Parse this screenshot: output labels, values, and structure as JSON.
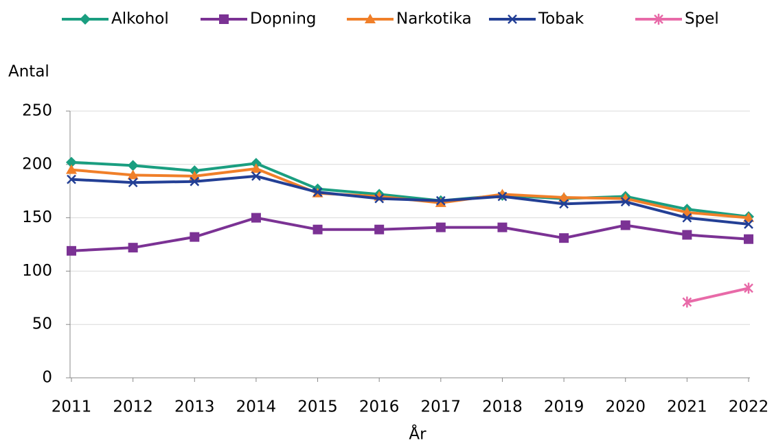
{
  "chart_data": {
    "type": "line",
    "y_label": "Antal",
    "x_label": "År",
    "categories": [
      "2011",
      "2012",
      "2013",
      "2014",
      "2015",
      "2016",
      "2017",
      "2018",
      "2019",
      "2020",
      "2021",
      "2022"
    ],
    "series": [
      {
        "name": "Alkohol",
        "color": "#1a9e80",
        "marker": "diamond",
        "values": [
          202,
          199,
          194,
          201,
          177,
          172,
          166,
          171,
          168,
          170,
          158,
          151
        ]
      },
      {
        "name": "Dopning",
        "color": "#7b3294",
        "marker": "square",
        "values": [
          119,
          122,
          132,
          150,
          139,
          139,
          141,
          141,
          131,
          143,
          134,
          130
        ]
      },
      {
        "name": "Narkotika",
        "color": "#f07f29",
        "marker": "triangle",
        "values": [
          195,
          190,
          189,
          196,
          173,
          170,
          164,
          172,
          169,
          168,
          155,
          150
        ]
      },
      {
        "name": "Tobak",
        "color": "#233f95",
        "marker": "x",
        "values": [
          186,
          183,
          184,
          189,
          174,
          168,
          166,
          170,
          163,
          165,
          150,
          144
        ]
      },
      {
        "name": "Spel",
        "color": "#e86aa8",
        "marker": "asterisk",
        "values": [
          null,
          null,
          null,
          null,
          null,
          null,
          null,
          null,
          null,
          null,
          71,
          84
        ]
      }
    ],
    "ylim": [
      0,
      250
    ],
    "yticks": [
      0,
      50,
      100,
      150,
      200,
      250
    ],
    "grid": true,
    "legend": "top"
  }
}
